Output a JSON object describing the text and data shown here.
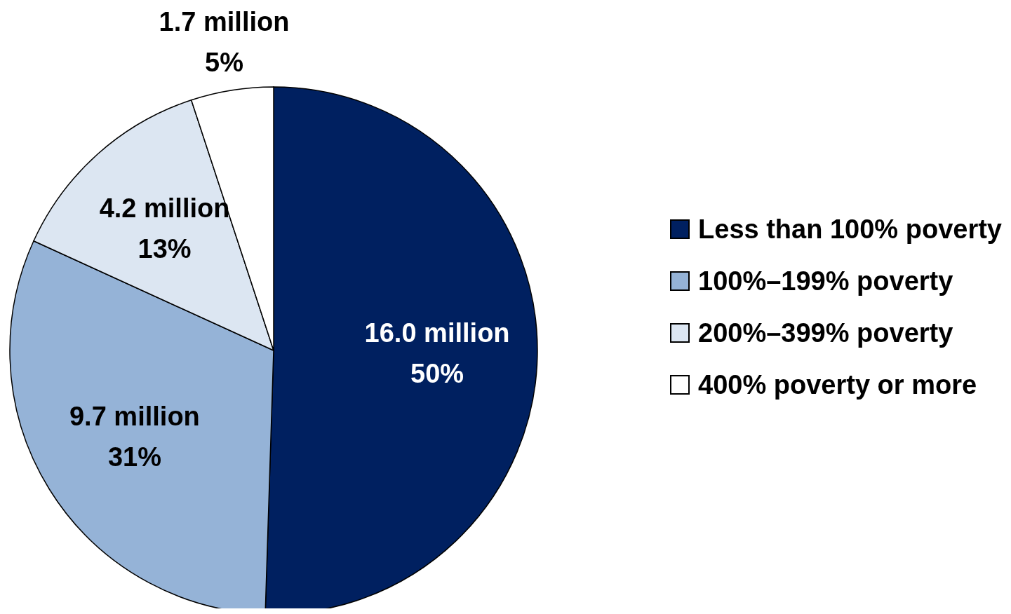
{
  "chart_data": {
    "type": "pie",
    "categories": [
      "Less than 100% poverty",
      "100%–199% poverty",
      "200%–399% poverty",
      "400% poverty or more"
    ],
    "values": [
      50,
      31,
      13,
      5
    ],
    "value_labels": [
      "16.0 million\n50%",
      "9.7 million\n31%",
      "4.2 million\n13%",
      "1.7 million\n5%"
    ],
    "colors": [
      "#002060",
      "#95b3d7",
      "#dce6f2",
      "#ffffff"
    ],
    "legend": "right"
  }
}
